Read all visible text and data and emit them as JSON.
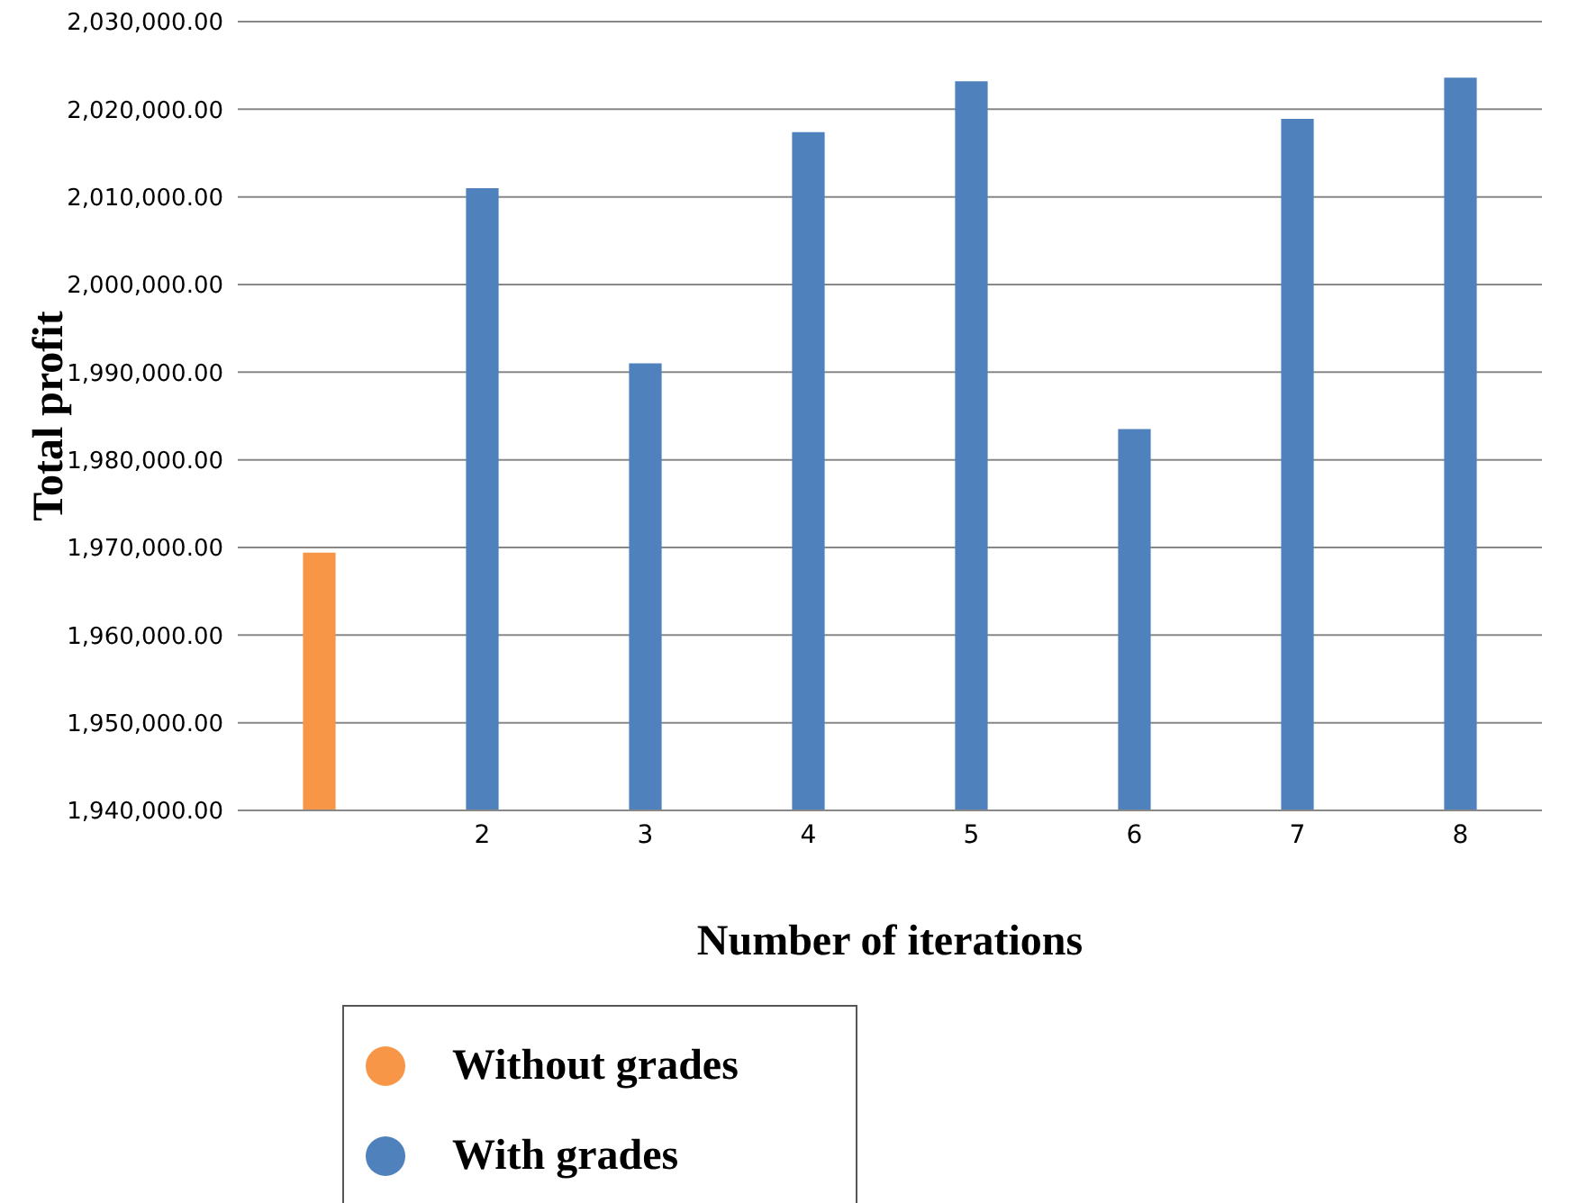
{
  "chart_data": {
    "type": "bar",
    "xlabel": "Number of iterations",
    "ylabel": "Total profit",
    "categories": [
      null,
      "2",
      "3",
      "4",
      "5",
      "6",
      "7",
      "8"
    ],
    "series": [
      {
        "name": "Without grades",
        "color": "#f79646",
        "values": [
          1969400,
          null,
          null,
          null,
          null,
          null,
          null,
          null
        ]
      },
      {
        "name": "With grades",
        "color": "#4f81bd",
        "values": [
          null,
          2011000,
          1991000,
          2017400,
          2023200,
          1983500,
          2018900,
          2023600
        ]
      }
    ],
    "stacked": true,
    "ylim": [
      1940000,
      2030000
    ],
    "yticks": [
      {
        "value": 1940000,
        "label": "1,940,000.00"
      },
      {
        "value": 1950000,
        "label": "1,950,000.00"
      },
      {
        "value": 1960000,
        "label": "1,960,000.00"
      },
      {
        "value": 1970000,
        "label": "1,970,000.00"
      },
      {
        "value": 1980000,
        "label": "1,980,000.00"
      },
      {
        "value": 1990000,
        "label": "1,990,000.00"
      },
      {
        "value": 2000000,
        "label": "2,000,000.00"
      },
      {
        "value": 2010000,
        "label": "2,010,000.00"
      },
      {
        "value": 2020000,
        "label": "2,020,000.00"
      },
      {
        "value": 2030000,
        "label": "2,030,000.00"
      }
    ],
    "grid": "y",
    "legend": "bottom"
  }
}
